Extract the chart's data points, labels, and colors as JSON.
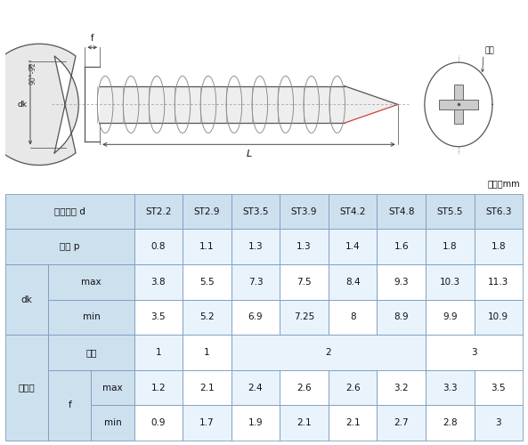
{
  "unit_label": "单位：mm",
  "col_headers": [
    "ST2.2",
    "ST2.9",
    "ST3.5",
    "ST3.9",
    "ST4.2",
    "ST4.8",
    "ST5.5",
    "ST6.3"
  ],
  "螺距p": [
    "0.8",
    "1.1",
    "1.3",
    "1.3",
    "1.4",
    "1.6",
    "1.8",
    "1.8"
  ],
  "dk_max": [
    "3.8",
    "5.5",
    "7.3",
    "7.5",
    "8.4",
    "9.3",
    "10.3",
    "11.3"
  ],
  "dk_min": [
    "3.5",
    "5.2",
    "6.9",
    "7.25",
    "8",
    "8.9",
    "9.9",
    "10.9"
  ],
  "槽号": [
    "1",
    "1",
    "2",
    "2",
    "2",
    "2",
    "3",
    "3"
  ],
  "f_max": [
    "1.2",
    "2.1",
    "2.4",
    "2.6",
    "2.6",
    "3.2",
    "3.3",
    "3.5"
  ],
  "f_min": [
    "0.9",
    "1.7",
    "1.9",
    "2.1",
    "2.1",
    "2.7",
    "2.8",
    "3"
  ],
  "bg_header": "#cde0ee",
  "bg_light": "#e8f3fb",
  "bg_white": "#ffffff",
  "line_color": "#555555",
  "text_color": "#111111",
  "diagram_bg": "#ffffff",
  "head_color": "#e8e8e8",
  "head_edge": "#555555",
  "shank_color": "#eeeeee",
  "thread_color": "#888888",
  "dim_color": "#444444",
  "red_color": "#cc4444"
}
